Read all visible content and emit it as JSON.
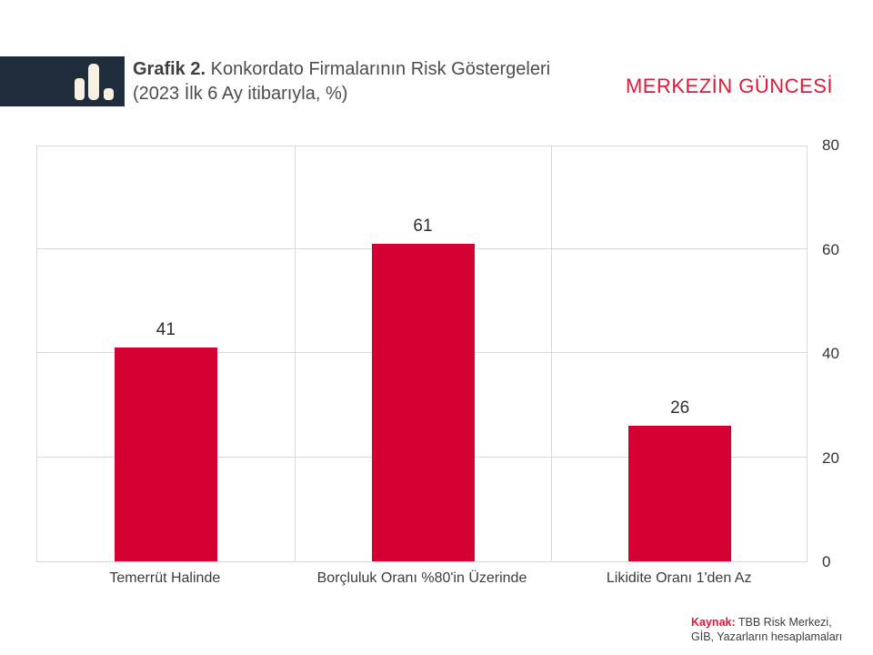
{
  "header": {
    "title_prefix": "Grafik 2.",
    "title_rest": " Konkordato Firmalarının Risk Göstergeleri",
    "title_line2": "(2023 İlk 6 Ay itibarıyla, %)",
    "masthead": "MERKEZİN GÜNCESİ"
  },
  "chart_data": {
    "type": "bar",
    "title": "Grafik 2. Konkordato Firmalarının Risk Göstergeleri (2023 İlk 6 Ay itibarıyla, %)",
    "categories": [
      "Temerrüt Halinde",
      "Borçluluk Oranı %80'in Üzerinde",
      "Likidite Oranı 1'den Az"
    ],
    "values": [
      41,
      61,
      26
    ],
    "data_labels": [
      41,
      61,
      26
    ],
    "xlabel": "",
    "ylabel": "",
    "ylim": [
      0,
      80
    ],
    "yticks": [
      0,
      20,
      40,
      60,
      80
    ],
    "yaxis_side": "right",
    "grid": true,
    "legend": false,
    "bar_color": "#d50032"
  },
  "footer": {
    "source_label": "Kaynak:",
    "source_line1": " TBB Risk Merkezi,",
    "source_line2": "GİB, Yazarların hesaplamaları"
  },
  "colors": {
    "bar": "#d50032",
    "masthead_red": "#e01837",
    "source_red": "#e01837",
    "logo_bg": "#1f2c3c",
    "logo_icon": "#f7f1e1",
    "grid": "#d9d9d9",
    "text_dark": "#3c3c3c"
  }
}
